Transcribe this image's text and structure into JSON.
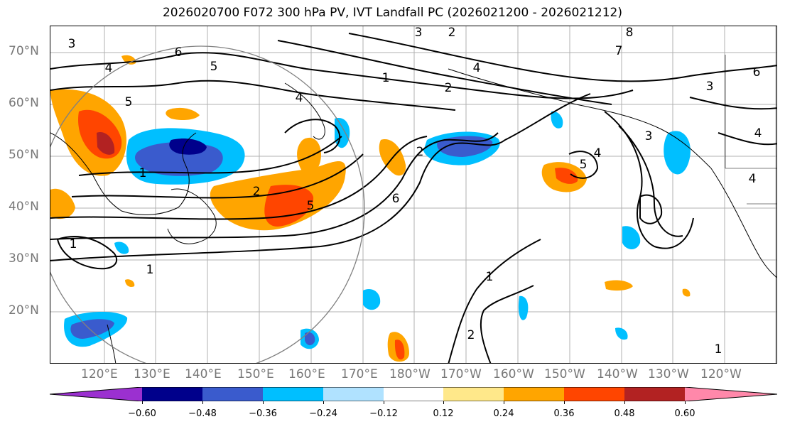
{
  "title": "2026020700 F072 300 hPa PV, IVT Landfall PC (2026021200 - 2026021212)",
  "lat_labels": [
    "70°N",
    "60°N",
    "50°N",
    "40°N",
    "30°N",
    "20°N"
  ],
  "lon_labels": [
    "120°E",
    "130°E",
    "140°E",
    "150°E",
    "160°E",
    "170°E",
    "180°W",
    "170°W",
    "160°W",
    "150°W",
    "140°W",
    "130°W",
    "120°W"
  ],
  "contour_labels": [
    "3",
    "2",
    "3",
    "8",
    "6",
    "7",
    "4",
    "5",
    "1",
    "2",
    "4",
    "6",
    "3",
    "5",
    "4",
    "1",
    "2",
    "5",
    "6",
    "4",
    "4",
    "1",
    "5",
    "1",
    "1",
    "2",
    "4",
    "3",
    "2",
    "1"
  ],
  "colorbar": {
    "ticks": [
      "−0.60",
      "−0.48",
      "−0.36",
      "−0.24",
      "−0.12",
      "0.12",
      "0.24",
      "0.36",
      "0.48",
      "0.60"
    ],
    "colors": [
      "#9b30d0",
      "#00008b",
      "#3a5bcd",
      "#00bfff",
      "#b0e2ff",
      "#ffffff",
      "#ffe88a",
      "#ffa500",
      "#ff4500",
      "#b22222",
      "#ff88aa"
    ]
  }
}
